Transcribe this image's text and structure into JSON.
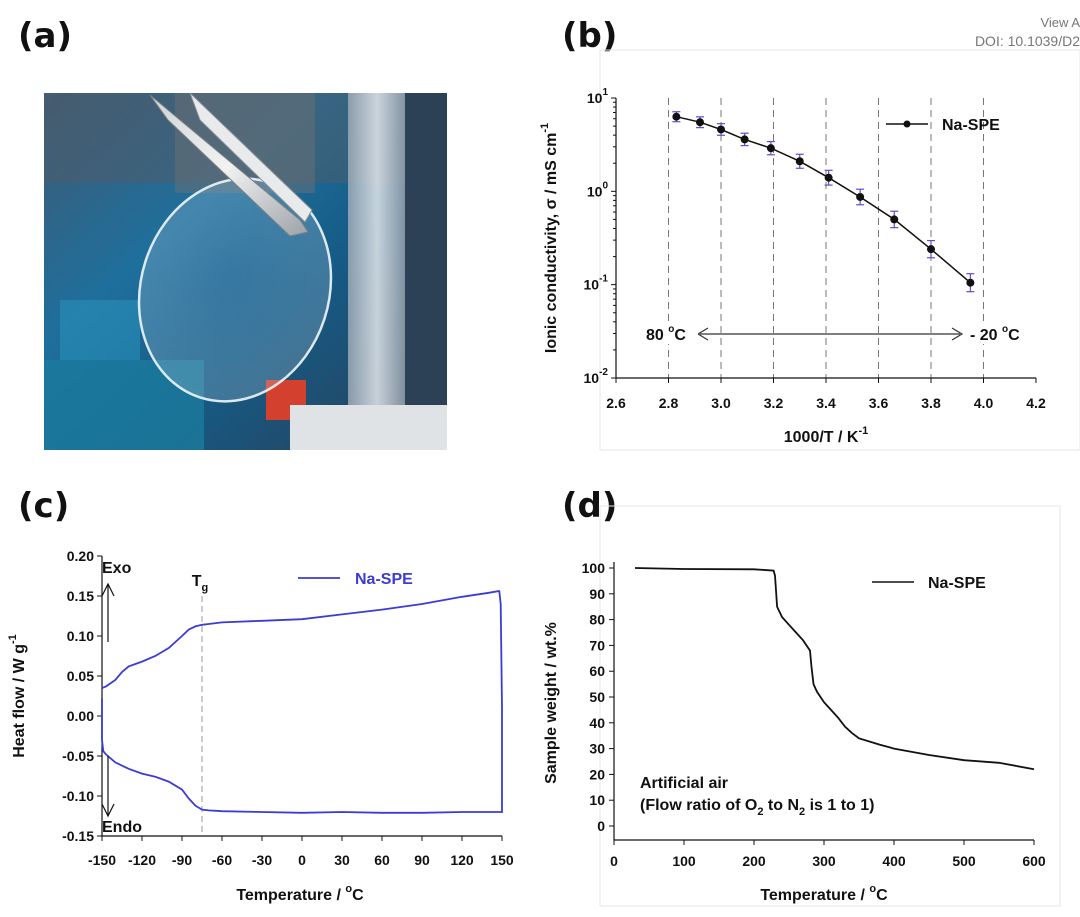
{
  "header": {
    "line1": "View A",
    "line2": "DOI: 10.1039/D2"
  },
  "panels": {
    "a": "(a)",
    "b": "(b)",
    "c": "(c)",
    "d": "(d)"
  },
  "photo": {
    "description_icon": "polymer-film-photo-icon"
  },
  "colors": {
    "dsc_line": "#3b3bd6",
    "marker": "#111111",
    "errorbar": "#5a4fcf",
    "grid": "#777777"
  },
  "chart_data": [
    {
      "id": "b",
      "type": "scatter",
      "title": "",
      "xlabel": "1000/T / K",
      "xlabel_sup": "-1",
      "ylabel": "Ionic conductivity, σ / mS cm",
      "ylabel_sup": "-1",
      "xlim": [
        2.6,
        4.2
      ],
      "ylim_log10": [
        -2,
        1
      ],
      "xticks": [
        "2.6",
        "2.8",
        "3.0",
        "3.2",
        "3.4",
        "3.6",
        "3.8",
        "4.0",
        "4.2"
      ],
      "yticks": [
        {
          "base": "10",
          "exp": "1"
        },
        {
          "base": "10",
          "exp": "0"
        },
        {
          "base": "10",
          "exp": "-1"
        },
        {
          "base": "10",
          "exp": "-2"
        }
      ],
      "vlines": [
        2.8,
        3.0,
        3.2,
        3.4,
        3.6,
        3.8,
        4.0
      ],
      "series": [
        {
          "name": "Na-SPE",
          "x": [
            2.83,
            2.92,
            3.0,
            3.09,
            3.19,
            3.3,
            3.41,
            3.53,
            3.66,
            3.8,
            3.95
          ],
          "y": [
            6.3,
            5.5,
            4.6,
            3.6,
            2.9,
            2.1,
            1.4,
            0.87,
            0.5,
            0.24,
            0.105
          ]
        }
      ],
      "annotation": {
        "left": "80 °C",
        "right": "- 20 °C"
      }
    },
    {
      "id": "c",
      "type": "line",
      "title": "",
      "xlabel": "Temperature / °C",
      "ylabel": "Heat flow / W g",
      "ylabel_sup": "-1",
      "xlim": [
        -150,
        150
      ],
      "ylim": [
        -0.15,
        0.2
      ],
      "xticks": [
        "-150",
        "-120",
        "-90",
        "-60",
        "-30",
        "0",
        "30",
        "60",
        "90",
        "120",
        "150"
      ],
      "yticks": [
        "0.20",
        "0.15",
        "0.10",
        "0.05",
        "0.00",
        "-0.05",
        "-0.10",
        "-0.15"
      ],
      "series": [
        {
          "name": "Na-SPE",
          "x": [
            -150,
            -147,
            -140,
            -135,
            -130,
            -120,
            -110,
            -100,
            -90,
            -85,
            -80,
            -75,
            -70,
            -60,
            -30,
            0,
            30,
            60,
            90,
            120,
            140,
            147,
            148,
            149,
            150,
            150,
            149,
            148,
            147,
            140,
            120,
            90,
            60,
            30,
            0,
            -30,
            -60,
            -70,
            -75,
            -80,
            -85,
            -90,
            -100,
            -110,
            -120,
            -130,
            -140,
            -147,
            -149,
            -150,
            -150
          ],
          "y": [
            0.035,
            0.037,
            0.045,
            0.055,
            0.062,
            0.068,
            0.075,
            0.085,
            0.1,
            0.108,
            0.112,
            0.114,
            0.115,
            0.117,
            0.119,
            0.121,
            0.127,
            0.133,
            0.14,
            0.149,
            0.154,
            0.156,
            0.156,
            0.14,
            0.01,
            -0.12,
            -0.12,
            -0.12,
            -0.12,
            -0.12,
            -0.12,
            -0.121,
            -0.121,
            -0.12,
            -0.121,
            -0.12,
            -0.119,
            -0.118,
            -0.117,
            -0.112,
            -0.103,
            -0.092,
            -0.082,
            -0.076,
            -0.072,
            -0.066,
            -0.058,
            -0.048,
            -0.044,
            -0.03,
            0.022
          ]
        }
      ],
      "labels": {
        "exo": "Exo",
        "endo": "Endo",
        "tg": "T",
        "tg_sub": "g"
      },
      "tg_x": -75
    },
    {
      "id": "d",
      "type": "line",
      "title": "",
      "xlabel": "Temperature / °C",
      "ylabel": "Sample weight / wt.%",
      "xlim": [
        0,
        600
      ],
      "ylim": [
        0,
        100
      ],
      "xticks": [
        "0",
        "100",
        "200",
        "300",
        "400",
        "500",
        "600"
      ],
      "yticks": [
        "100",
        "90",
        "80",
        "70",
        "60",
        "50",
        "40",
        "30",
        "20",
        "10",
        "0"
      ],
      "series": [
        {
          "name": "Na-SPE",
          "x": [
            30,
            100,
            200,
            228,
            230,
            233,
            240,
            250,
            260,
            270,
            280,
            282,
            285,
            290,
            300,
            310,
            320,
            330,
            340,
            350,
            380,
            400,
            450,
            500,
            550,
            600
          ],
          "y": [
            100,
            99.6,
            99.5,
            99,
            97,
            85,
            81,
            78,
            75,
            72,
            68,
            62,
            55,
            52,
            48,
            45,
            42,
            38.5,
            36,
            34,
            31.5,
            30,
            27.5,
            25.5,
            24.5,
            22
          ]
        }
      ],
      "annotation_line1": "Artificial air",
      "annotation_line2": {
        "p1": "(Flow ratio of O",
        "s1": "2",
        "p2": " to N",
        "s2": "2",
        "p3": " is 1 to 1)"
      }
    }
  ]
}
